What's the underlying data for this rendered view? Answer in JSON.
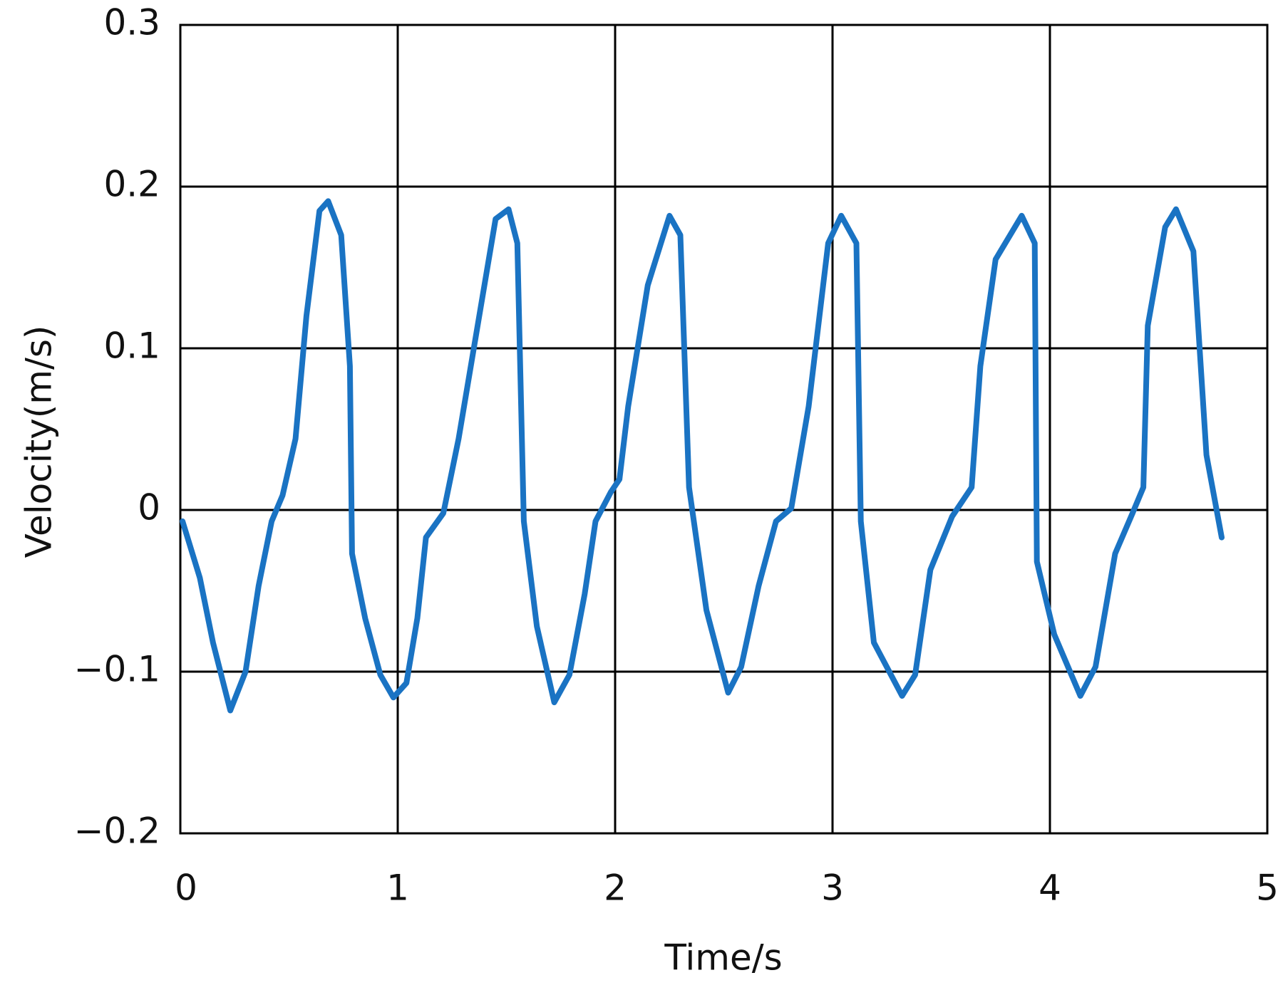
{
  "chart_data": {
    "type": "line",
    "x_label": "Time/s",
    "y_label": "Velocity(m/s)",
    "x": [
      0.01,
      0.09,
      0.15,
      0.23,
      0.3,
      0.36,
      0.42,
      0.47,
      0.53,
      0.58,
      0.64,
      0.68,
      0.74,
      0.78,
      0.79,
      0.85,
      0.92,
      0.98,
      1.04,
      1.09,
      1.13,
      1.21,
      1.28,
      1.38,
      1.45,
      1.51,
      1.55,
      1.58,
      1.64,
      1.72,
      1.79,
      1.86,
      1.91,
      1.98,
      2.02,
      2.06,
      2.15,
      2.25,
      2.3,
      2.34,
      2.42,
      2.52,
      2.58,
      2.66,
      2.74,
      2.81,
      2.89,
      2.98,
      3.04,
      3.11,
      3.13,
      3.19,
      3.32,
      3.38,
      3.45,
      3.55,
      3.64,
      3.68,
      3.75,
      3.87,
      3.93,
      3.94,
      4.02,
      4.14,
      4.21,
      4.3,
      4.38,
      4.43,
      4.45,
      4.53,
      4.58,
      4.66,
      4.72,
      4.79
    ],
    "values": [
      -0.007,
      -0.042,
      -0.082,
      -0.124,
      -0.1,
      -0.047,
      -0.007,
      0.009,
      0.044,
      0.12,
      0.185,
      0.191,
      0.17,
      0.089,
      -0.027,
      -0.067,
      -0.102,
      -0.116,
      -0.107,
      -0.067,
      -0.017,
      -0.002,
      0.044,
      0.124,
      0.18,
      0.186,
      0.165,
      -0.007,
      -0.072,
      -0.119,
      -0.102,
      -0.052,
      -0.007,
      0.011,
      0.019,
      0.064,
      0.139,
      0.182,
      0.17,
      0.014,
      -0.062,
      -0.113,
      -0.097,
      -0.047,
      -0.007,
      0.001,
      0.064,
      0.165,
      0.182,
      0.165,
      -0.007,
      -0.082,
      -0.115,
      -0.102,
      -0.037,
      -0.004,
      0.014,
      0.089,
      0.155,
      0.182,
      0.165,
      -0.032,
      -0.077,
      -0.115,
      -0.097,
      -0.027,
      -0.002,
      0.014,
      0.114,
      0.175,
      0.186,
      0.16,
      0.034,
      -0.017
    ],
    "color": "#1a73c3",
    "xlim": [
      0,
      5
    ],
    "xticks": [
      0,
      1,
      2,
      3,
      4,
      5
    ],
    "ylim": [
      -0.2,
      0.3
    ],
    "yticks": [
      {
        "value": -0.2,
        "label": "−0.2"
      },
      {
        "value": -0.1,
        "label": "−0.1"
      },
      0,
      0.1,
      0.2,
      0.3
    ],
    "grid": true
  }
}
